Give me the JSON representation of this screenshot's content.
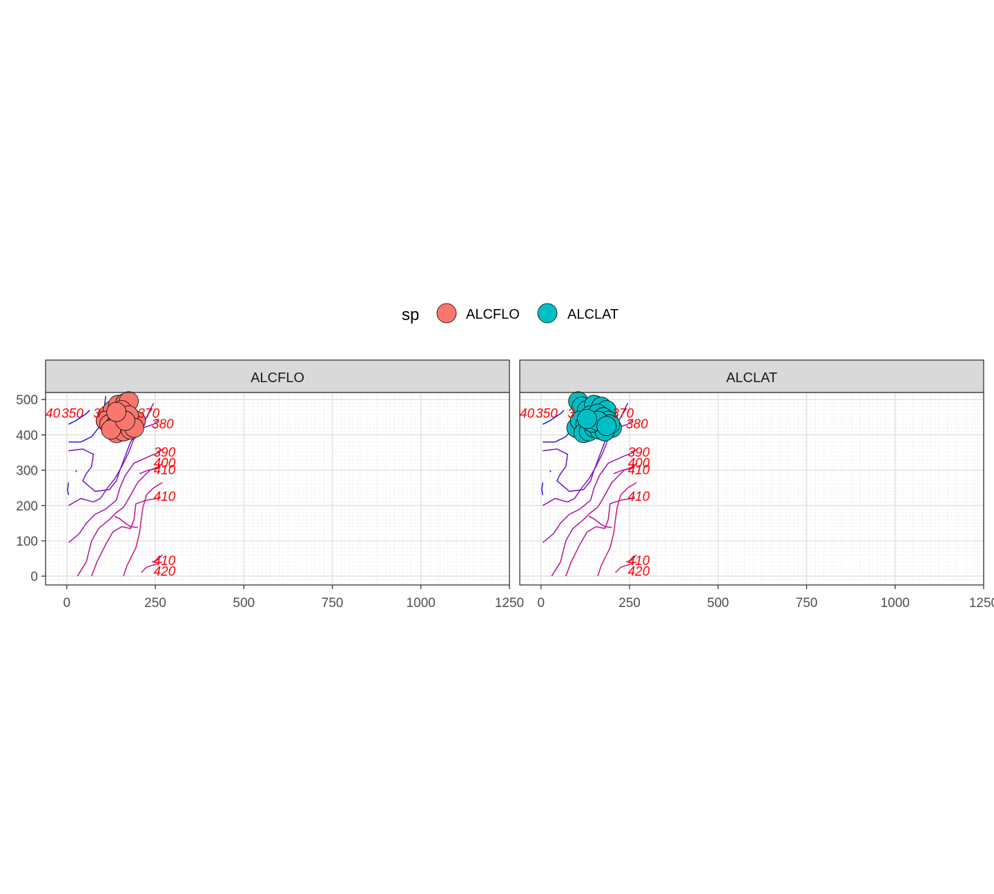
{
  "chart_data": {
    "type": "scatter",
    "legend": {
      "title": "sp",
      "position": "top",
      "entries": [
        {
          "label": "ALCFLO",
          "color": "#F8766D"
        },
        {
          "label": "ALCLAT",
          "color": "#00BFC4"
        }
      ]
    },
    "x_ticks": [
      "0",
      "250",
      "500",
      "750",
      "1000",
      "1250"
    ],
    "y_ticks": [
      "0",
      "100",
      "200",
      "300",
      "400",
      "500"
    ],
    "xlim": [
      -60,
      1250
    ],
    "ylim": [
      -25,
      520
    ],
    "grid": true,
    "panels": [
      {
        "strip": "ALCFLO",
        "color": "#F8766D",
        "points": [
          {
            "x": 115,
            "y": 455
          },
          {
            "x": 130,
            "y": 470
          },
          {
            "x": 145,
            "y": 485
          },
          {
            "x": 165,
            "y": 490
          },
          {
            "x": 175,
            "y": 495
          },
          {
            "x": 110,
            "y": 440
          },
          {
            "x": 120,
            "y": 430
          },
          {
            "x": 135,
            "y": 425
          },
          {
            "x": 150,
            "y": 420
          },
          {
            "x": 170,
            "y": 430
          },
          {
            "x": 185,
            "y": 435
          },
          {
            "x": 195,
            "y": 440
          },
          {
            "x": 140,
            "y": 405
          },
          {
            "x": 160,
            "y": 410
          },
          {
            "x": 180,
            "y": 415
          },
          {
            "x": 145,
            "y": 450
          },
          {
            "x": 155,
            "y": 470
          },
          {
            "x": 175,
            "y": 455
          },
          {
            "x": 190,
            "y": 420
          },
          {
            "x": 125,
            "y": 415
          },
          {
            "x": 165,
            "y": 440
          },
          {
            "x": 140,
            "y": 465
          }
        ]
      },
      {
        "strip": "ALCLAT",
        "color": "#00BFC4",
        "points": [
          {
            "x": 105,
            "y": 495
          },
          {
            "x": 115,
            "y": 480
          },
          {
            "x": 130,
            "y": 470
          },
          {
            "x": 150,
            "y": 485
          },
          {
            "x": 170,
            "y": 480
          },
          {
            "x": 185,
            "y": 470
          },
          {
            "x": 100,
            "y": 420
          },
          {
            "x": 110,
            "y": 440
          },
          {
            "x": 125,
            "y": 430
          },
          {
            "x": 140,
            "y": 455
          },
          {
            "x": 160,
            "y": 460
          },
          {
            "x": 175,
            "y": 450
          },
          {
            "x": 190,
            "y": 440
          },
          {
            "x": 200,
            "y": 420
          },
          {
            "x": 120,
            "y": 405
          },
          {
            "x": 135,
            "y": 410
          },
          {
            "x": 150,
            "y": 420
          },
          {
            "x": 165,
            "y": 415
          },
          {
            "x": 180,
            "y": 410
          },
          {
            "x": 195,
            "y": 430
          },
          {
            "x": 145,
            "y": 435
          },
          {
            "x": 160,
            "y": 440
          },
          {
            "x": 130,
            "y": 445
          },
          {
            "x": 185,
            "y": 425
          }
        ]
      }
    ],
    "contours": [
      {
        "level": 350,
        "color": "#1010e0",
        "lines": [
          [
            [
              5,
              430
            ],
            [
              25,
              440
            ],
            [
              40,
              450
            ],
            [
              55,
              460
            ],
            [
              65,
              470
            ]
          ]
        ]
      },
      {
        "level": 360,
        "color": "#3a12d8",
        "lines": [
          [
            [
              5,
              380
            ],
            [
              40,
              380
            ],
            [
              70,
              395
            ],
            [
              90,
              420
            ],
            [
              105,
              470
            ],
            [
              110,
              510
            ]
          ],
          [
            [
              5,
              265
            ],
            [
              2,
              245
            ],
            [
              5,
              230
            ]
          ]
        ]
      },
      {
        "level": 370,
        "color": "#6a14cc",
        "lines": [
          [
            [
              5,
              355
            ],
            [
              45,
              360
            ],
            [
              75,
              345
            ],
            [
              70,
              310
            ],
            [
              55,
              290
            ],
            [
              45,
              270
            ],
            [
              80,
              240
            ],
            [
              120,
              245
            ],
            [
              140,
              270
            ],
            [
              150,
              300
            ],
            [
              165,
              340
            ],
            [
              180,
              380
            ],
            [
              210,
              420
            ],
            [
              225,
              450
            ],
            [
              235,
              470
            ],
            [
              245,
              490
            ]
          ],
          [
            [
              25,
              300
            ],
            [
              28,
              295
            ]
          ]
        ]
      },
      {
        "level": 380,
        "color": "#8a14c0",
        "lines": [
          [
            [
              5,
              200
            ],
            [
              40,
              220
            ],
            [
              75,
              210
            ],
            [
              95,
              220
            ],
            [
              115,
              250
            ],
            [
              135,
              275
            ],
            [
              155,
              310
            ],
            [
              175,
              350
            ],
            [
              190,
              390
            ],
            [
              215,
              420
            ],
            [
              245,
              430
            ],
            [
              260,
              445
            ]
          ]
        ]
      },
      {
        "level": 390,
        "color": "#9e12b0",
        "lines": [
          [
            [
              5,
              95
            ],
            [
              35,
              120
            ],
            [
              55,
              150
            ],
            [
              80,
              175
            ],
            [
              110,
              190
            ],
            [
              140,
              215
            ],
            [
              150,
              250
            ],
            [
              165,
              285
            ],
            [
              190,
              320
            ],
            [
              235,
              340
            ],
            [
              260,
              350
            ],
            [
              270,
              360
            ]
          ]
        ]
      },
      {
        "level": 400,
        "color": "#b0109e",
        "lines": [
          [
            [
              30,
              0
            ],
            [
              55,
              40
            ],
            [
              70,
              100
            ],
            [
              90,
              135
            ],
            [
              120,
              160
            ],
            [
              140,
              180
            ],
            [
              160,
              195
            ],
            [
              175,
              220
            ],
            [
              200,
              265
            ],
            [
              235,
              300
            ],
            [
              260,
              310
            ],
            [
              270,
              320
            ]
          ],
          [
            [
              135,
              170
            ],
            [
              150,
              162
            ],
            [
              165,
              150
            ],
            [
              180,
              140
            ],
            [
              200,
              138
            ]
          ]
        ]
      },
      {
        "level": 410,
        "color": "#c0108c",
        "lines": [
          [
            [
              70,
              0
            ],
            [
              85,
              40
            ],
            [
              110,
              90
            ],
            [
              130,
              125
            ],
            [
              155,
              140
            ],
            [
              180,
              135
            ],
            [
              190,
              160
            ],
            [
              195,
              205
            ],
            [
              225,
              215
            ],
            [
              255,
              220
            ],
            [
              265,
              225
            ]
          ],
          [
            [
              205,
              290
            ],
            [
              230,
              300
            ],
            [
              255,
              305
            ],
            [
              265,
              310
            ]
          ],
          [
            [
              240,
              40
            ],
            [
              255,
              45
            ],
            [
              265,
              55
            ],
            [
              270,
              60
            ]
          ]
        ]
      },
      {
        "level": 420,
        "color": "#d0107a",
        "lines": [
          [
            [
              160,
              0
            ],
            [
              170,
              30
            ],
            [
              180,
              50
            ],
            [
              195,
              80
            ],
            [
              205,
              120
            ],
            [
              210,
              160
            ],
            [
              215,
              195
            ],
            [
              225,
              230
            ],
            [
              245,
              250
            ],
            [
              270,
              265
            ]
          ],
          [
            [
              210,
              10
            ],
            [
              225,
              25
            ],
            [
              240,
              30
            ],
            [
              255,
              35
            ],
            [
              270,
              40
            ]
          ]
        ]
      }
    ],
    "contour_labels": [
      {
        "text": "40",
        "x": -60,
        "y": 462
      },
      {
        "text": "350",
        "x": -15,
        "y": 462
      },
      {
        "text": "3",
        "x": 75,
        "y": 462
      },
      {
        "text": "370",
        "x": 200,
        "y": 462
      },
      {
        "text": "380",
        "x": 240,
        "y": 432
      },
      {
        "text": "390",
        "x": 245,
        "y": 352
      },
      {
        "text": "400",
        "x": 245,
        "y": 322
      },
      {
        "text": "410",
        "x": 245,
        "y": 302
      },
      {
        "text": "410",
        "x": 245,
        "y": 227
      },
      {
        "text": "410",
        "x": 245,
        "y": 45
      },
      {
        "text": "420",
        "x": 245,
        "y": 15
      }
    ]
  }
}
